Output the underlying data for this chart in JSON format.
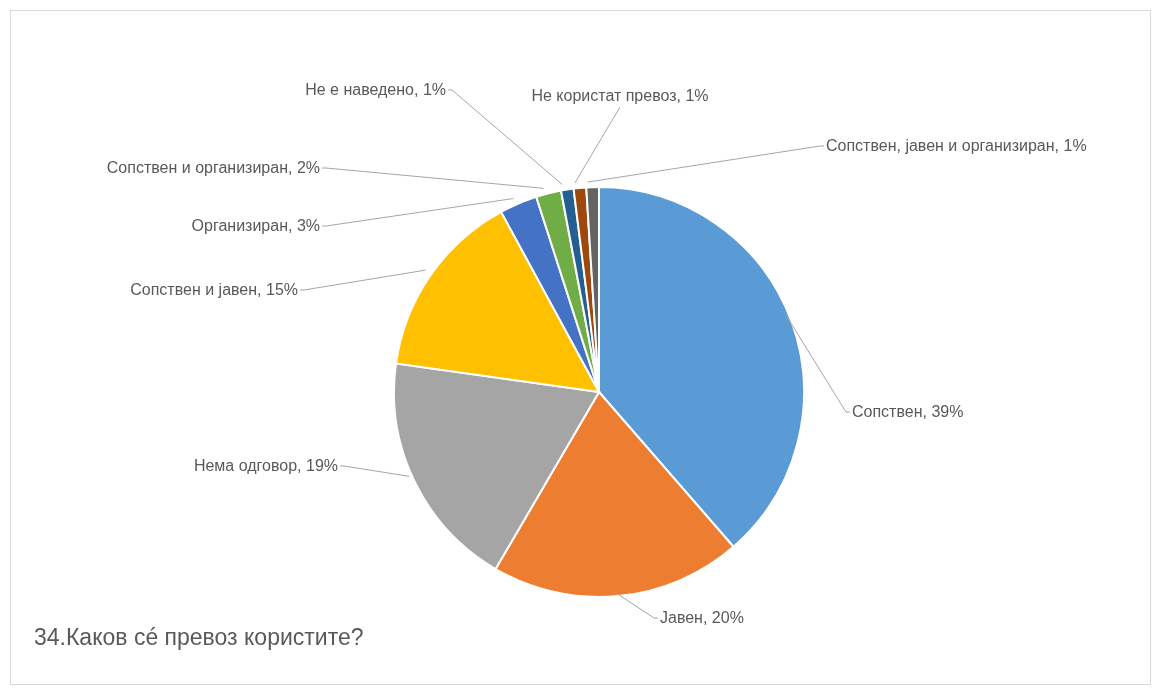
{
  "chart_data": {
    "type": "pie",
    "title": "34.Каков сé превоз користите?",
    "categories": [
      "Сопствен",
      "Јавен",
      "Нема одговор",
      "Сопствен и јавен",
      "Организиран",
      "Сопствен и организиран",
      "Не е наведено",
      "Не користат превоз",
      "Сопствен, јавен и организиран"
    ],
    "values": [
      39,
      20,
      19,
      15,
      3,
      2,
      1,
      1,
      1
    ],
    "value_labels": [
      "39%",
      "20%",
      "19%",
      "15%",
      "3%",
      "2%",
      "1%",
      "1%",
      "1%"
    ],
    "colors": [
      "#5b9bd5",
      "#ed7d31",
      "#a5a5a5",
      "#ffc000",
      "#4472c4",
      "#70ad47",
      "#255e91",
      "#9e480e",
      "#636363"
    ]
  }
}
